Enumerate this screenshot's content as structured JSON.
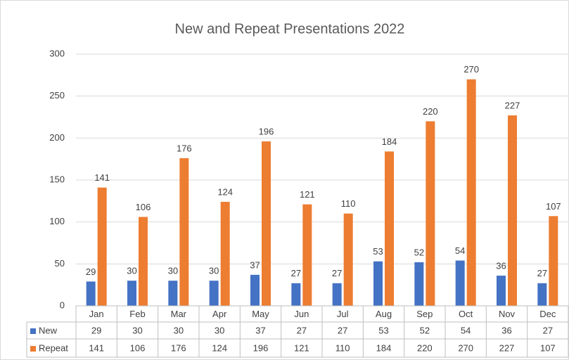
{
  "chart_data": {
    "type": "bar",
    "title": "New and Repeat Presentations 2022",
    "categories": [
      "Jan",
      "Feb",
      "Mar",
      "Apr",
      "May",
      "Jun",
      "Jul",
      "Aug",
      "Sep",
      "Oct",
      "Nov",
      "Dec"
    ],
    "series": [
      {
        "name": "New",
        "color": "#4472c4",
        "values": [
          29,
          30,
          30,
          30,
          37,
          27,
          27,
          53,
          52,
          54,
          36,
          27
        ]
      },
      {
        "name": "Repeat",
        "color": "#ed7d31",
        "values": [
          141,
          106,
          176,
          124,
          196,
          121,
          110,
          184,
          220,
          270,
          227,
          107
        ]
      }
    ],
    "ylim": [
      0,
      300
    ],
    "yticks": [
      0,
      50,
      100,
      150,
      200,
      250,
      300
    ],
    "grid": true,
    "data_table": true
  }
}
